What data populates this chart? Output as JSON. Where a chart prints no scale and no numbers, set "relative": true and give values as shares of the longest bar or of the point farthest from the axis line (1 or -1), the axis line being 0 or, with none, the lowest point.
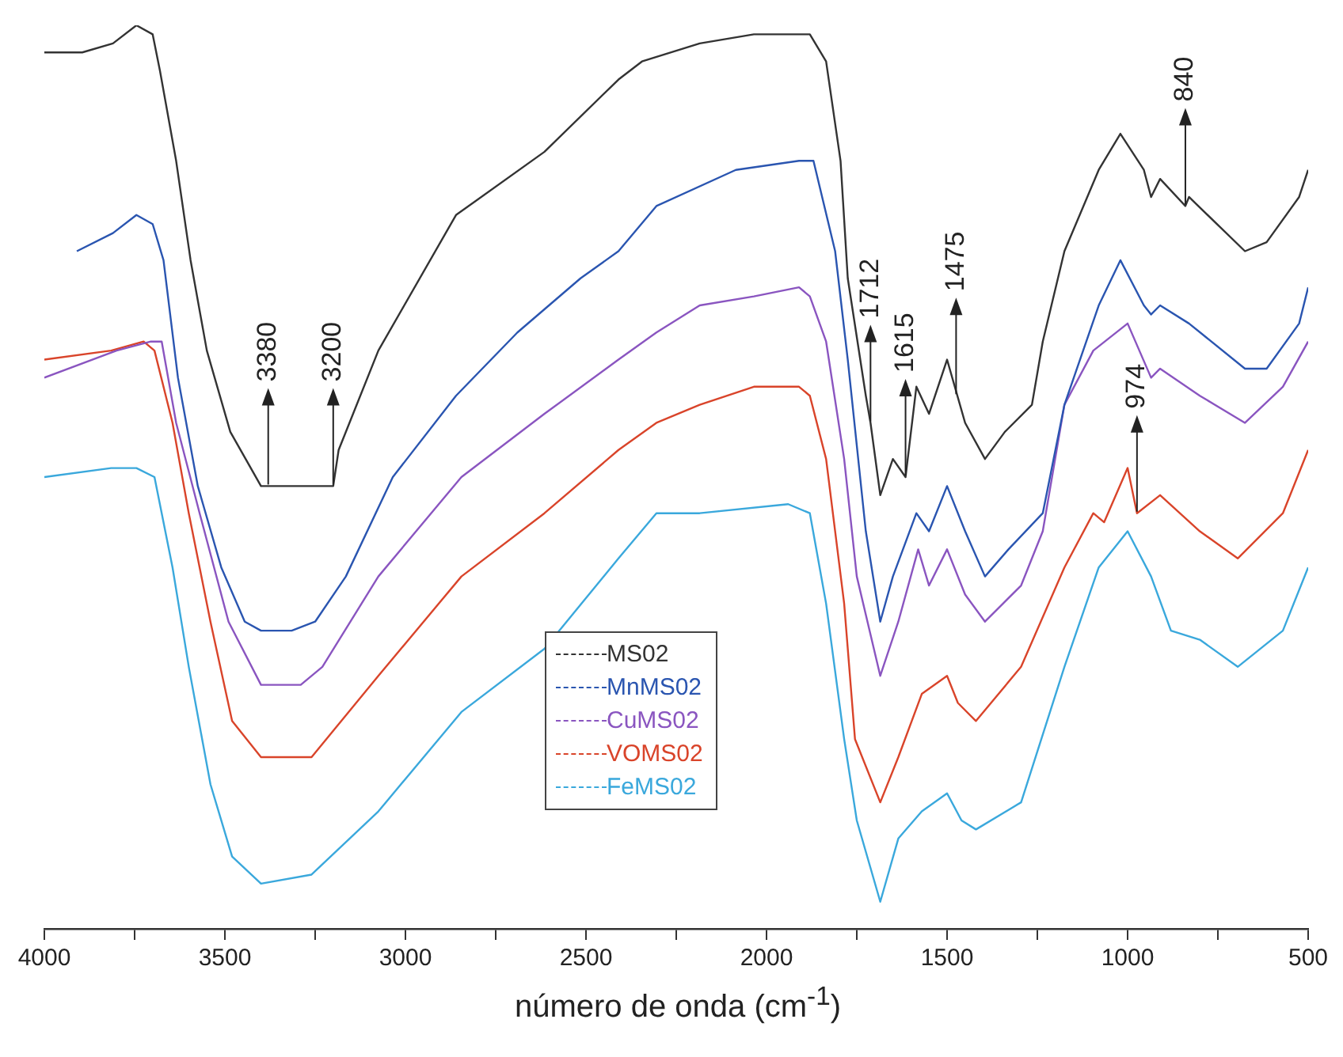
{
  "chart_data": {
    "type": "line",
    "relative": true,
    "xlabel": "número de onda (cm$^{-1}$)",
    "xlim": [
      4000,
      500
    ],
    "xticks": [
      4000,
      {
        "value": 3750,
        "label": null
      },
      3500,
      {
        "value": 3250,
        "label": null
      },
      3000,
      {
        "value": 2750,
        "label": null
      },
      2500,
      {
        "value": 2250,
        "label": null
      },
      2000,
      {
        "value": 1750,
        "label": null
      },
      1500,
      {
        "value": 1250,
        "label": null
      },
      1000,
      {
        "value": 750,
        "label": null
      },
      500
    ],
    "grid": false,
    "legend": "bottom",
    "series": [
      {
        "name": "MS02",
        "color": "#333333",
        "x": [
          4000,
          3895,
          3810,
          3745,
          3700,
          3680,
          3635,
          3595,
          3550,
          3485,
          3400,
          3315,
          3250,
          3200,
          3185,
          3075,
          2860,
          2615,
          2410,
          2345,
          2185,
          2035,
          1910,
          1880,
          1835,
          1795,
          1775,
          1725,
          1712,
          1685,
          1650,
          1615,
          1585,
          1550,
          1500,
          1450,
          1395,
          1340,
          1265,
          1235,
          1175,
          1080,
          1020,
          955,
          935,
          910,
          840,
          830,
          675,
          615,
          525,
          500
        ],
        "values": [
          0.97,
          0.97,
          0.98,
          1,
          0.99,
          0.95,
          0.85,
          0.74,
          0.64,
          0.55,
          0.49,
          0.49,
          0.49,
          0.49,
          0.53,
          0.64,
          0.79,
          0.86,
          0.94,
          0.96,
          0.98,
          0.99,
          0.99,
          0.99,
          0.96,
          0.85,
          0.72,
          0.59,
          0.56,
          0.48,
          0.52,
          0.5,
          0.6,
          0.57,
          0.63,
          0.56,
          0.52,
          0.55,
          0.58,
          0.65,
          0.75,
          0.84,
          0.88,
          0.84,
          0.81,
          0.83,
          0.8,
          0.81,
          0.75,
          0.76,
          0.81,
          0.84
        ]
      },
      {
        "name": "MnMS02",
        "color": "#2a55b0",
        "x": [
          3910,
          3810,
          3745,
          3700,
          3670,
          3630,
          3575,
          3510,
          3445,
          3400,
          3315,
          3250,
          3165,
          3035,
          2860,
          2690,
          2515,
          2410,
          2305,
          2085,
          1910,
          1870,
          1810,
          1775,
          1725,
          1685,
          1650,
          1585,
          1550,
          1500,
          1450,
          1395,
          1330,
          1235,
          1175,
          1080,
          1020,
          955,
          935,
          910,
          830,
          675,
          615,
          525,
          500
        ],
        "values": [
          0.75,
          0.77,
          0.79,
          0.78,
          0.74,
          0.61,
          0.49,
          0.4,
          0.34,
          0.33,
          0.33,
          0.34,
          0.39,
          0.5,
          0.59,
          0.66,
          0.72,
          0.75,
          0.8,
          0.84,
          0.85,
          0.85,
          0.75,
          0.63,
          0.44,
          0.34,
          0.39,
          0.46,
          0.44,
          0.49,
          0.44,
          0.39,
          0.42,
          0.46,
          0.58,
          0.69,
          0.74,
          0.69,
          0.68,
          0.69,
          0.67,
          0.62,
          0.62,
          0.67,
          0.71
        ]
      },
      {
        "name": "CuMS02",
        "color": "#8a55c0",
        "x": [
          4000,
          3800,
          3705,
          3675,
          3635,
          3570,
          3490,
          3400,
          3290,
          3230,
          3075,
          2845,
          2615,
          2410,
          2305,
          2185,
          2035,
          1910,
          1880,
          1835,
          1785,
          1750,
          1685,
          1635,
          1580,
          1550,
          1500,
          1450,
          1395,
          1295,
          1235,
          1175,
          1095,
          1000,
          935,
          910,
          800,
          675,
          570,
          500
        ],
        "values": [
          0.61,
          0.64,
          0.65,
          0.65,
          0.56,
          0.46,
          0.34,
          0.27,
          0.27,
          0.29,
          0.39,
          0.5,
          0.57,
          0.63,
          0.66,
          0.69,
          0.7,
          0.71,
          0.7,
          0.65,
          0.52,
          0.39,
          0.28,
          0.34,
          0.42,
          0.38,
          0.42,
          0.37,
          0.34,
          0.38,
          0.44,
          0.58,
          0.64,
          0.67,
          0.61,
          0.62,
          0.59,
          0.56,
          0.6,
          0.65
        ]
      },
      {
        "name": "VOMS02",
        "color": "#d9442a",
        "x": [
          4000,
          3815,
          3725,
          3695,
          3645,
          3600,
          3540,
          3480,
          3400,
          3260,
          3075,
          2845,
          2615,
          2410,
          2305,
          2185,
          2035,
          1910,
          1880,
          1835,
          1785,
          1755,
          1685,
          1635,
          1570,
          1500,
          1470,
          1420,
          1295,
          1175,
          1095,
          1065,
          1000,
          974,
          910,
          800,
          695,
          570,
          500
        ],
        "values": [
          0.63,
          0.64,
          0.65,
          0.64,
          0.56,
          0.46,
          0.34,
          0.23,
          0.19,
          0.19,
          0.28,
          0.39,
          0.46,
          0.53,
          0.56,
          0.58,
          0.6,
          0.6,
          0.59,
          0.52,
          0.36,
          0.21,
          0.14,
          0.19,
          0.26,
          0.28,
          0.25,
          0.23,
          0.29,
          0.4,
          0.46,
          0.45,
          0.51,
          0.46,
          0.48,
          0.44,
          0.41,
          0.46,
          0.53
        ]
      },
      {
        "name": "FeMS02",
        "color": "#3aa8dc",
        "x": [
          4000,
          3815,
          3745,
          3695,
          3645,
          3600,
          3540,
          3480,
          3400,
          3260,
          3075,
          2845,
          2615,
          2410,
          2305,
          2185,
          1940,
          1880,
          1835,
          1785,
          1750,
          1685,
          1635,
          1570,
          1500,
          1460,
          1420,
          1295,
          1175,
          1080,
          1000,
          935,
          880,
          800,
          695,
          570,
          500
        ],
        "values": [
          0.5,
          0.51,
          0.51,
          0.5,
          0.4,
          0.29,
          0.16,
          0.08,
          0.05,
          0.06,
          0.13,
          0.24,
          0.31,
          0.41,
          0.46,
          0.46,
          0.47,
          0.46,
          0.36,
          0.21,
          0.12,
          0.03,
          0.1,
          0.13,
          0.15,
          0.12,
          0.11,
          0.14,
          0.29,
          0.4,
          0.44,
          0.39,
          0.33,
          0.32,
          0.29,
          0.33,
          0.4
        ]
      }
    ],
    "annotations": [
      {
        "text": "3380",
        "x": 3380,
        "y": 0.49
      },
      {
        "text": "3200",
        "x": 3200,
        "y": 0.49
      },
      {
        "text": "1712",
        "x": 1712,
        "y": 0.56
      },
      {
        "text": "1615",
        "x": 1615,
        "y": 0.5
      },
      {
        "text": "1475",
        "x": 1475,
        "y": 0.59
      },
      {
        "text": "974",
        "x": 974,
        "y": 0.46
      },
      {
        "text": "840",
        "x": 840,
        "y": 0.8
      }
    ]
  }
}
